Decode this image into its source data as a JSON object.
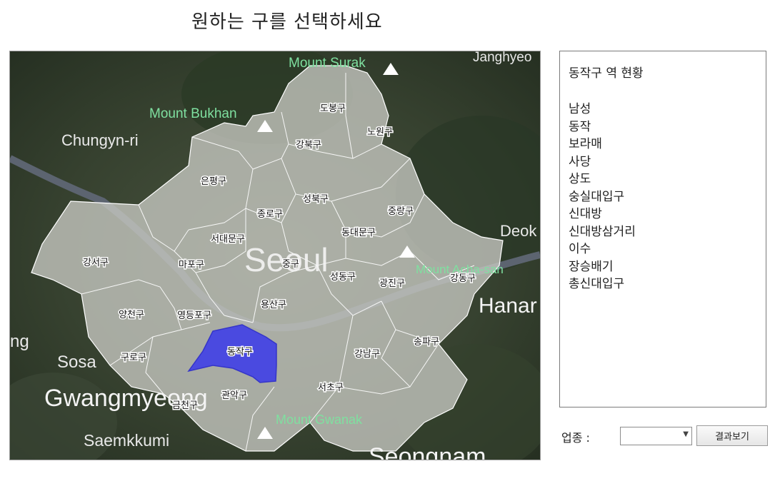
{
  "header": {
    "title": "원하는 구를 선택하세요"
  },
  "map": {
    "place_labels": {
      "mount_surak": "Mount Surak",
      "janghyeon": "Janghyeo",
      "mount_bukhan": "Mount Bukhan",
      "chungyn_ri": "Chungyn-ri",
      "seoul": "Seoul",
      "deok": "Deok",
      "mount_acha_san": "Mount Acha-san",
      "hanam": "Hanar",
      "ing": "ng",
      "sosa": "Sosa",
      "gwangmyeong": "Gwangmyeong",
      "mount_gwanak": "Mount Gwanak",
      "saemkkumi": "Saemkkumi",
      "seongnam": "Seongnam"
    },
    "districts": {
      "dobong": "도봉구",
      "nowon": "노원구",
      "gangbuk": "강북구",
      "eunpyeong": "은평구",
      "seongbuk": "성북구",
      "jongno": "종로구",
      "jungnang": "중랑구",
      "dongdaemun": "동대문구",
      "seodaemun": "서대문구",
      "gangseo": "강서구",
      "mapo": "마포구",
      "jung": "중구",
      "seongdong": "성동구",
      "gwangjin": "광진구",
      "gangdong": "강동구",
      "yongsan": "용산구",
      "yangcheon": "양천구",
      "yeongdeungpo": "영등포구",
      "dongjak": "동작구",
      "guro": "구로구",
      "gangnam": "강남구",
      "songpa": "송파구",
      "seocho": "서초구",
      "gwanak": "관악구",
      "geumcheon": "금천구"
    },
    "selected_district": "동작구",
    "selected_color": "#4a4ae0"
  },
  "info_panel": {
    "title": "동작구 역 현황",
    "stations": [
      "남성",
      "동작",
      "보라매",
      "사당",
      "상도",
      "숭실대입구",
      "신대방",
      "신대방삼거리",
      "이수",
      "장승배기",
      "총신대입구"
    ]
  },
  "controls": {
    "category_label": "업종 :",
    "category_value": "",
    "result_button": "결과보기"
  }
}
